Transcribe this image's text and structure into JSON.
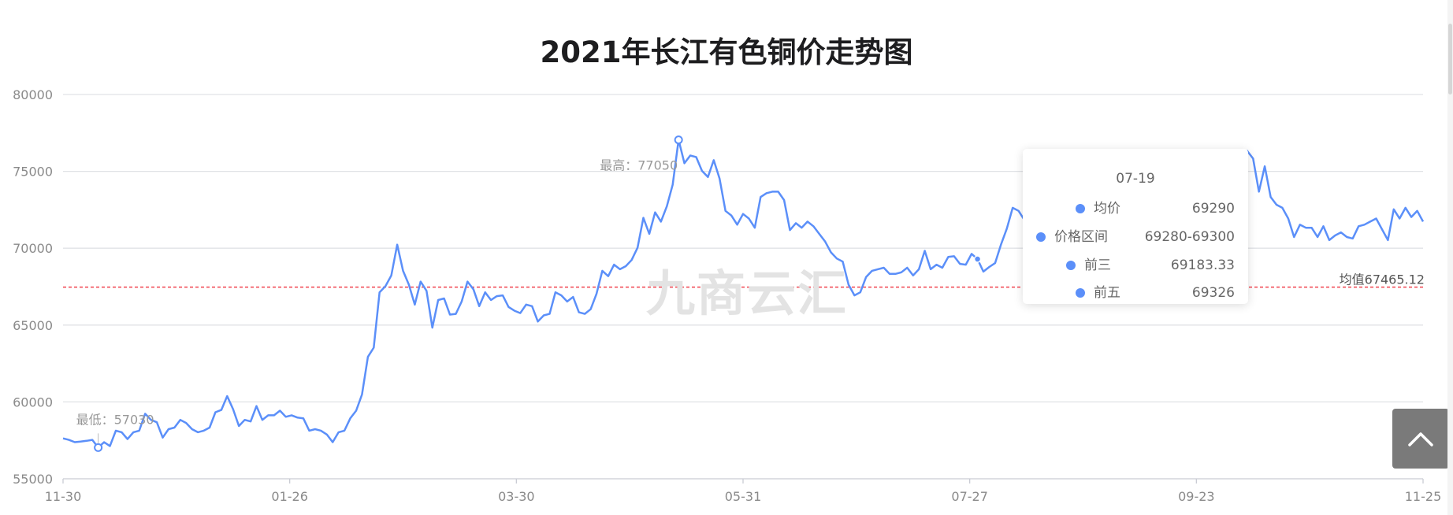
{
  "chart_data": {
    "type": "line",
    "title": "2021年长江有色铜价走势图",
    "xlabel": "",
    "ylabel": "",
    "ylim": [
      55000,
      80000
    ],
    "y_ticks": [
      "80000",
      "75000",
      "70000",
      "65000",
      "60000",
      "55000"
    ],
    "x_tick_labels": [
      "11-30",
      "01-26",
      "03-30",
      "05-31",
      "07-27",
      "09-23",
      "11-25"
    ],
    "grid": true,
    "color": "#5b8ff9",
    "mean": {
      "value": 67465.12,
      "label": "均值67465.12",
      "color": "#f0434e"
    },
    "max_label": "最高：77050",
    "min_label": "最低：57030",
    "values": [
      57630,
      57530,
      57380,
      57420,
      57470,
      57530,
      57030,
      57380,
      57130,
      58130,
      58030,
      57580,
      58030,
      58130,
      59230,
      58830,
      58680,
      57680,
      58230,
      58330,
      58830,
      58630,
      58230,
      58030,
      58130,
      58330,
      59330,
      59480,
      60380,
      59530,
      58430,
      58830,
      58730,
      59730,
      58830,
      59130,
      59130,
      59430,
      59030,
      59130,
      58980,
      58930,
      58130,
      58230,
      58130,
      57880,
      57380,
      58030,
      58130,
      58930,
      59430,
      60480,
      62930,
      63530,
      67130,
      67530,
      68230,
      70230,
      68530,
      67630,
      66330,
      67830,
      67230,
      64830,
      66630,
      66730,
      65680,
      65730,
      66530,
      67830,
      67330,
      66230,
      67130,
      66630,
      66880,
      66930,
      66180,
      65930,
      65780,
      66330,
      66230,
      65230,
      65630,
      65730,
      67130,
      66930,
      66530,
      66830,
      65830,
      65730,
      66030,
      67030,
      68530,
      68180,
      68930,
      68630,
      68830,
      69230,
      70030,
      71980,
      70930,
      72330,
      71730,
      72730,
      74130,
      77050,
      75530,
      76030,
      75930,
      75030,
      74630,
      75730,
      74530,
      72430,
      72130,
      71530,
      72230,
      71930,
      71330,
      73330,
      73580,
      73680,
      73680,
      73130,
      71180,
      71630,
      71330,
      71730,
      71430,
      70930,
      70430,
      69730,
      69330,
      69130,
      67630,
      66930,
      67130,
      68130,
      68530,
      68630,
      68730,
      68330,
      68330,
      68430,
      68730,
      68230,
      68630,
      69830,
      68630,
      68930,
      68730,
      69430,
      69480,
      68980,
      68930,
      69630,
      69290,
      68480,
      68780,
      69030,
      70230,
      71280,
      72630,
      72430,
      71830,
      71780,
      71830,
      71280,
      70530,
      69830,
      69880,
      69730,
      69630,
      69530,
      70230,
      70530,
      69730,
      69530,
      69230,
      69430,
      69430,
      69530,
      69730,
      69530,
      69830,
      70030,
      69730,
      69230,
      69430,
      69730,
      70530,
      70830,
      70230,
      69830,
      70030,
      70530,
      71030,
      71430,
      71230,
      71730,
      72330,
      73830,
      76330,
      75830,
      73680,
      75330,
      73330,
      72830,
      72630,
      71930,
      70730,
      71530,
      71330,
      71330,
      70730,
      71430,
      70530,
      70830,
      71030,
      70730,
      70630,
      71430,
      71530,
      71730,
      71930,
      71230,
      70530,
      72530,
      71930,
      72630,
      72030,
      72430,
      71730
    ],
    "tooltip": {
      "date": "07-19",
      "rows": [
        {
          "label": "均价",
          "value": "69290"
        },
        {
          "label": "价格区间",
          "value": "69280-69300"
        },
        {
          "label": "前三",
          "value": "69183.33"
        },
        {
          "label": "前五",
          "value": "69326"
        }
      ]
    }
  },
  "watermark": "九商云汇",
  "back_to_top": "chevron-up-icon"
}
